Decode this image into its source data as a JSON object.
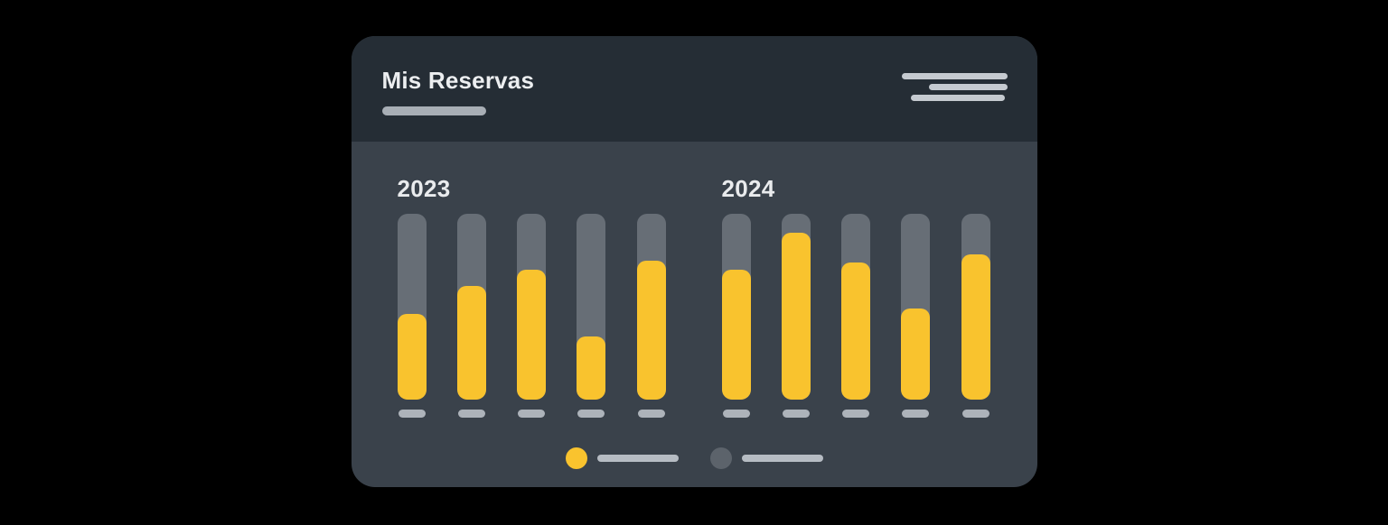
{
  "card": {
    "header": {
      "title": "Mis Reservas",
      "title_underline": "placeholder-pill",
      "menu_icon": "hamburger-menu-icon"
    },
    "legend": {
      "items": [
        {
          "name": "series-2023",
          "dot_color": "#F9C32E",
          "label": "placeholder-line"
        },
        {
          "name": "series-2024",
          "dot_color": "#5C636B",
          "label": "placeholder-line"
        }
      ],
      "position": "bottom-center"
    }
  },
  "colors": {
    "bg": "#000000",
    "card-body": "#3A424B",
    "card-header": "#252D35",
    "yellow": "#F9C32E",
    "track": "#676E76",
    "text": "#ECEEF0",
    "muted-pill": "#A8AEB5",
    "menu-line": "#C5CAD0",
    "tick": "#ADB3BA",
    "legend-line": "#B6BCC3",
    "legend-gray-dot": "#5C636B"
  },
  "chart_data": {
    "type": "bar",
    "title": "Mis Reservas",
    "ylim": [
      0,
      100
    ],
    "value_unit": "percent-of-track-height",
    "grid": false,
    "legend_position": "bottom",
    "bar_color": "#F9C32E",
    "track_color": "#676E76",
    "groups": [
      {
        "label": "2023",
        "values": [
          46,
          61,
          70,
          34,
          75
        ]
      },
      {
        "label": "2024",
        "values": [
          70,
          90,
          74,
          49,
          78
        ]
      }
    ],
    "x_tick_labels": "blank-placeholder-pills"
  }
}
